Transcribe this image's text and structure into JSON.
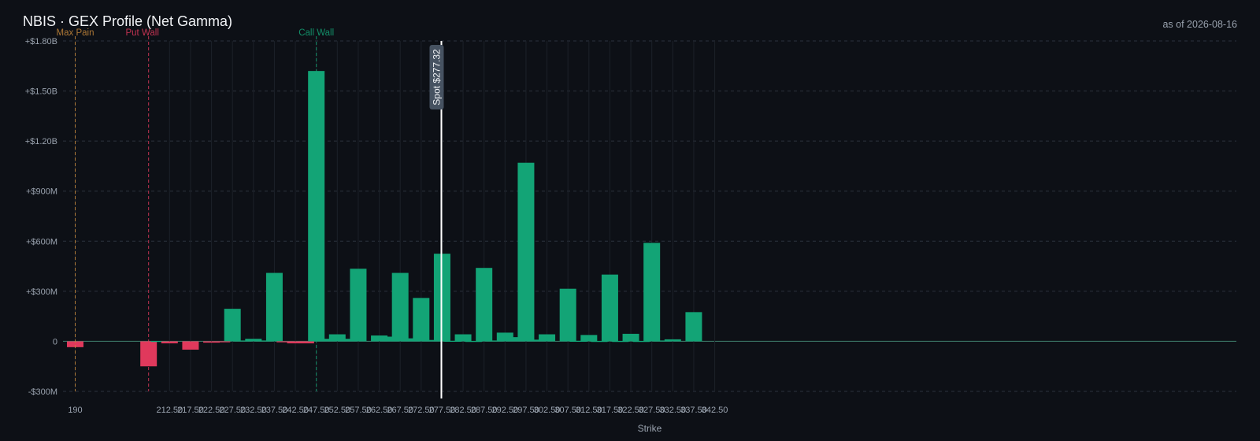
{
  "header": {
    "title": "NBIS · GEX Profile (Net Gamma)",
    "as_of": "as of 2026-08-16"
  },
  "colors": {
    "positive": "#13a476",
    "negative": "#e0395c",
    "call_wall": "#13a476",
    "put_wall": "#e0395c",
    "max_pain": "#c98a3b",
    "spot": "#ffffff",
    "grid": "#2c323d"
  },
  "chart_data": {
    "type": "bar",
    "xlabel": "Strike",
    "ylabel": "",
    "ylim": [
      -300000000,
      1800000000
    ],
    "y_ticks": [
      -300000000,
      0,
      300000000,
      600000000,
      900000000,
      1200000000,
      1500000000,
      1800000000
    ],
    "y_tick_labels": [
      "-$300M",
      "0",
      "+$300M",
      "+$600M",
      "+$900M",
      "+$1.20B",
      "+$1.50B",
      "+$1.80B"
    ],
    "x_ticks": [
      "190",
      "212.50",
      "217.50",
      "222.50",
      "227.50",
      "232.50",
      "237.50",
      "242.50",
      "247.50",
      "252.50",
      "257.50",
      "262.50",
      "267.50",
      "272.50",
      "277.50",
      "282.50",
      "287.50",
      "292.50",
      "297.50",
      "302.50",
      "307.50",
      "312.50",
      "317.50",
      "322.50",
      "327.50",
      "332.50",
      "337.50",
      "342.50"
    ],
    "grid": true,
    "bars": [
      {
        "strike": 190,
        "value": -35000000
      },
      {
        "strike": 207.5,
        "value": -150000000
      },
      {
        "strike": 210,
        "value": 2000000
      },
      {
        "strike": 212.5,
        "value": -12000000
      },
      {
        "strike": 217.5,
        "value": -50000000
      },
      {
        "strike": 222.5,
        "value": -8000000
      },
      {
        "strike": 225,
        "value": -5000000
      },
      {
        "strike": 227.5,
        "value": 195000000
      },
      {
        "strike": 230,
        "value": 5000000
      },
      {
        "strike": 232.5,
        "value": 15000000
      },
      {
        "strike": 235,
        "value": 5000000
      },
      {
        "strike": 237.5,
        "value": 410000000
      },
      {
        "strike": 240,
        "value": -5000000
      },
      {
        "strike": 242.5,
        "value": -12000000
      },
      {
        "strike": 245,
        "value": -12000000
      },
      {
        "strike": 247.5,
        "value": 1620000000
      },
      {
        "strike": 250,
        "value": 15000000
      },
      {
        "strike": 252.5,
        "value": 42000000
      },
      {
        "strike": 255,
        "value": 15000000
      },
      {
        "strike": 257.5,
        "value": 435000000
      },
      {
        "strike": 262.5,
        "value": 35000000
      },
      {
        "strike": 265,
        "value": 28000000
      },
      {
        "strike": 267.5,
        "value": 410000000
      },
      {
        "strike": 270,
        "value": 18000000
      },
      {
        "strike": 272.5,
        "value": 260000000
      },
      {
        "strike": 275,
        "value": 8000000
      },
      {
        "strike": 277.5,
        "value": 525000000
      },
      {
        "strike": 280,
        "value": 3000000
      },
      {
        "strike": 282.5,
        "value": 42000000
      },
      {
        "strike": 285,
        "value": 2000000
      },
      {
        "strike": 287.5,
        "value": 440000000
      },
      {
        "strike": 290,
        "value": 5000000
      },
      {
        "strike": 292.5,
        "value": 52000000
      },
      {
        "strike": 295,
        "value": 25000000
      },
      {
        "strike": 297.5,
        "value": 1070000000
      },
      {
        "strike": 300,
        "value": 10000000
      },
      {
        "strike": 302.5,
        "value": 42000000
      },
      {
        "strike": 307.5,
        "value": 315000000
      },
      {
        "strike": 310,
        "value": 3000000
      },
      {
        "strike": 312.5,
        "value": 38000000
      },
      {
        "strike": 315,
        "value": 2000000
      },
      {
        "strike": 317.5,
        "value": 400000000
      },
      {
        "strike": 320,
        "value": 2000000
      },
      {
        "strike": 322.5,
        "value": 45000000
      },
      {
        "strike": 325,
        "value": 2000000
      },
      {
        "strike": 327.5,
        "value": 590000000
      },
      {
        "strike": 330,
        "value": 5000000
      },
      {
        "strike": 332.5,
        "value": 12000000
      },
      {
        "strike": 337.5,
        "value": 175000000
      }
    ],
    "markers": [
      {
        "label": "Max Pain",
        "strike": 190,
        "kind": "max_pain"
      },
      {
        "label": "Put Wall",
        "strike": 207.5,
        "kind": "put_wall"
      },
      {
        "label": "Call Wall",
        "strike": 247.5,
        "kind": "call_wall"
      }
    ],
    "spot": {
      "strike": 277.32,
      "label": "Spot $277.32"
    }
  }
}
